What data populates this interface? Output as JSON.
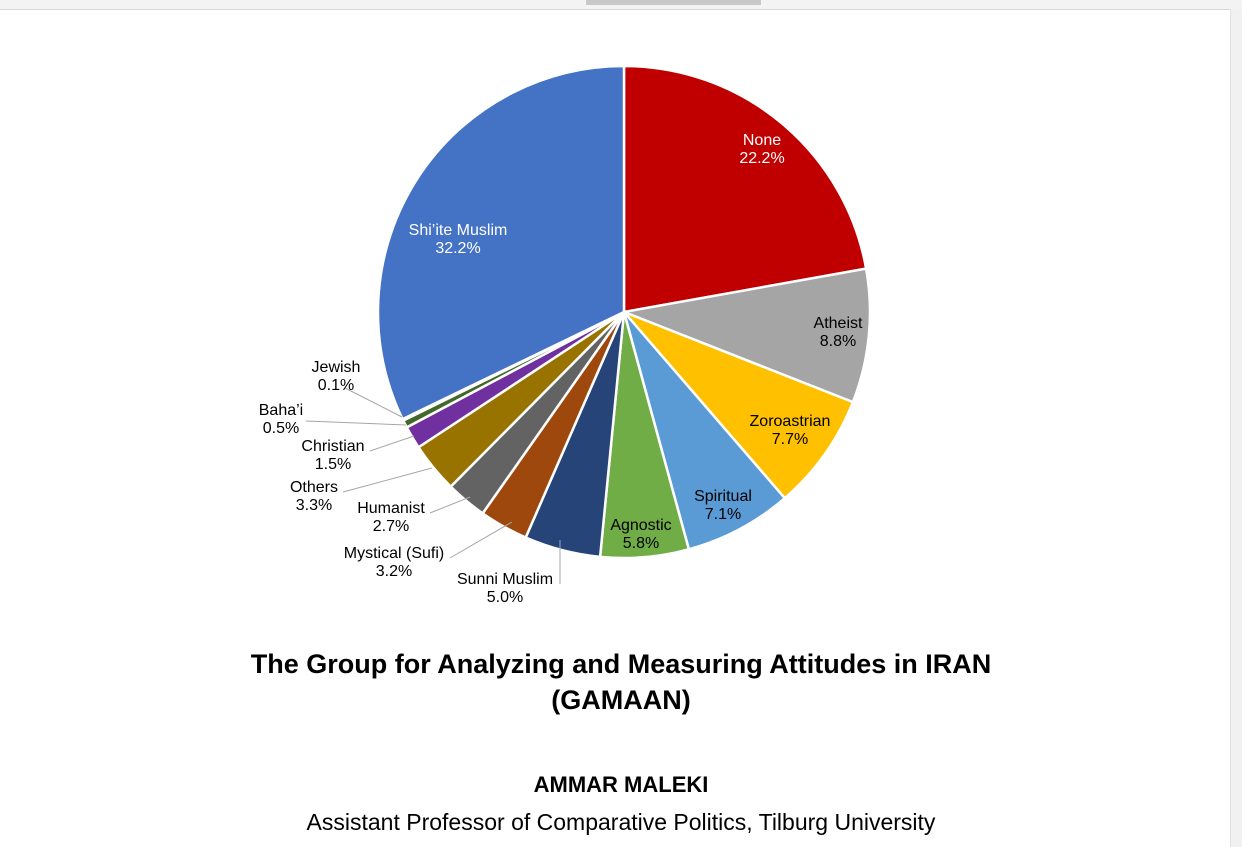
{
  "chart_data": {
    "type": "pie",
    "start": "12 o'clock",
    "direction": "clockwise",
    "slices": [
      {
        "label": "None",
        "value": 22.2,
        "display": "22.2%",
        "color": "#c00000",
        "text_color": "#ffffff",
        "label_inside": true
      },
      {
        "label": "Atheist",
        "value": 8.8,
        "display": "8.8%",
        "color": "#a5a5a5",
        "text_color": "#000000",
        "label_inside": true
      },
      {
        "label": "Zoroastrian",
        "value": 7.7,
        "display": "7.7%",
        "color": "#ffc000",
        "text_color": "#000000",
        "label_inside": true
      },
      {
        "label": "Spiritual",
        "value": 7.1,
        "display": "7.1%",
        "color": "#5b9bd5",
        "text_color": "#000000",
        "label_inside": true
      },
      {
        "label": "Agnostic",
        "value": 5.8,
        "display": "5.8%",
        "color": "#70ad47",
        "text_color": "#000000",
        "label_inside": true
      },
      {
        "label": "Sunni Muslim",
        "value": 5.0,
        "display": "5.0%",
        "color": "#264478",
        "text_color": "#000000",
        "label_inside": false
      },
      {
        "label": "Mystical (Sufi)",
        "value": 3.2,
        "display": "3.2%",
        "color": "#9e480e",
        "text_color": "#000000",
        "label_inside": false
      },
      {
        "label": "Humanist",
        "value": 2.7,
        "display": "2.7%",
        "color": "#636363",
        "text_color": "#000000",
        "label_inside": false
      },
      {
        "label": "Others",
        "value": 3.3,
        "display": "3.3%",
        "color": "#997300",
        "text_color": "#000000",
        "label_inside": false
      },
      {
        "label": "Christian",
        "value": 1.5,
        "display": "1.5%",
        "color": "#7030a0",
        "text_color": "#000000",
        "label_inside": false
      },
      {
        "label": "Baha’i",
        "value": 0.5,
        "display": "0.5%",
        "color": "#43682b",
        "text_color": "#000000",
        "label_inside": false
      },
      {
        "label": "Jewish",
        "value": 0.1,
        "display": "0.1%",
        "color": "#255e91",
        "text_color": "#000000",
        "label_inside": false
      },
      {
        "label": "Shi’ite Muslim",
        "value": 32.2,
        "display": "32.2%",
        "color": "#4472c4",
        "text_color": "#ffffff",
        "label_inside": true
      }
    ]
  },
  "caption": {
    "title_line1": "The Group for Analyzing and Measuring Attitudes in IRAN",
    "title_line2": "(GAMAAN)",
    "author": "AMMAR MALEKI",
    "affiliation": "Assistant Professor of Comparative Politics, Tilburg University"
  }
}
